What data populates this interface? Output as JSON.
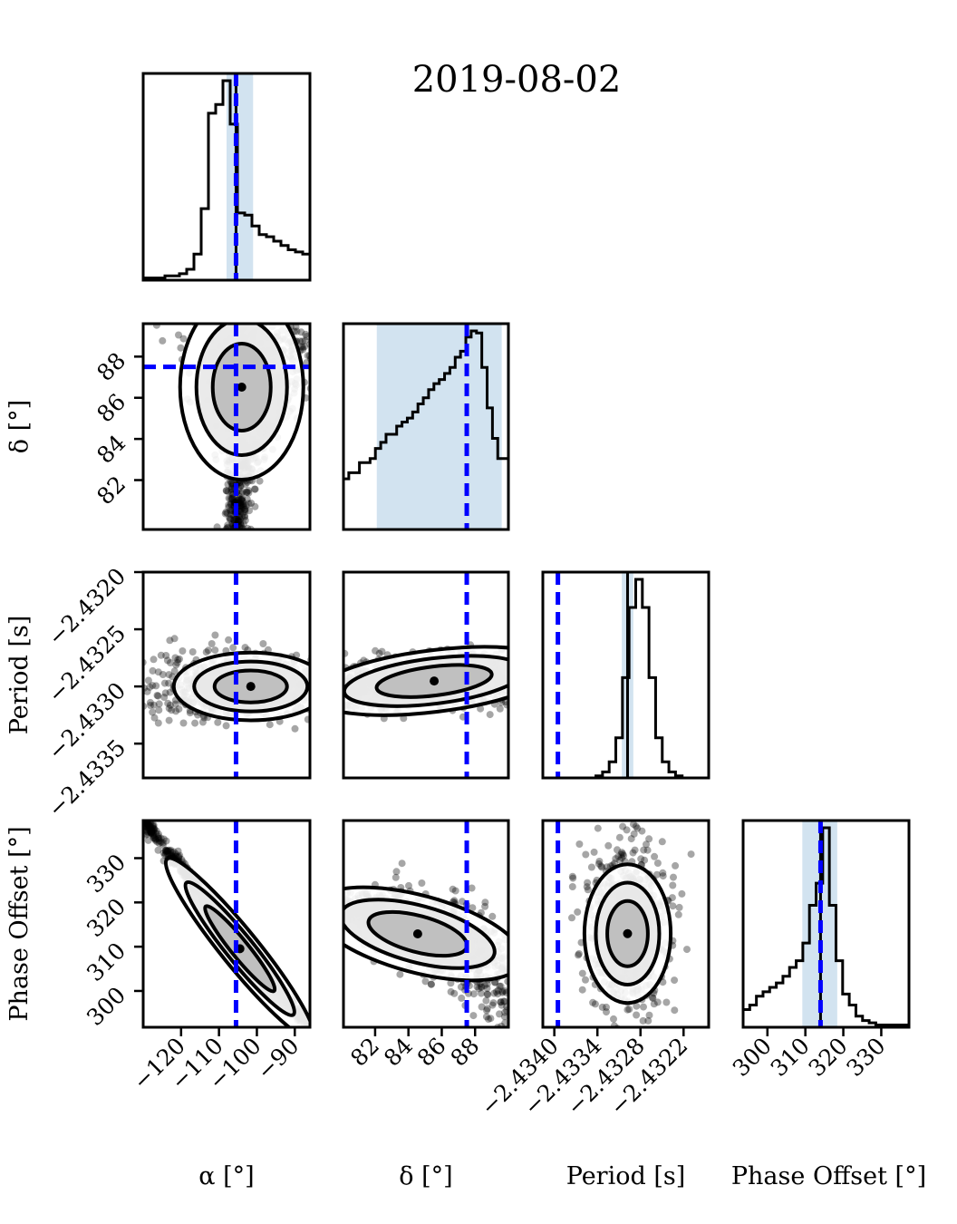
{
  "chart_data": {
    "type": "corner",
    "title": "2019-08-02",
    "parameters": [
      {
        "label": "α [°]",
        "range": [
          -130,
          -86
        ],
        "ticks": [
          -120,
          -110,
          -100,
          -90
        ],
        "tick_labels": [
          "−120",
          "−110",
          "−100",
          "−90"
        ],
        "truth": -105.5,
        "peak": -105.5,
        "ci": [
          -108.0,
          -101.0
        ]
      },
      {
        "label": "δ [°]",
        "range": [
          80.1,
          90.0
        ],
        "ticks": [
          82,
          84,
          86,
          88
        ],
        "tick_labels": [
          "82",
          "84",
          "86",
          "88"
        ],
        "truth": 87.5,
        "peak": 87.5,
        "ci": [
          82.1,
          89.6
        ]
      },
      {
        "label": "Period [s]",
        "range": [
          -2.43416,
          -2.43185
        ],
        "ticks": [
          -2.434,
          -2.4334,
          -2.4328,
          -2.4322
        ],
        "tick_labels": [
          "−2.4340",
          "−2.4334",
          "−2.4328",
          "−2.4322"
        ],
        "row_ticks": [
          -2.4335,
          -2.433,
          -2.4325,
          -2.432
        ],
        "row_tick_labels": [
          "−2.4335",
          "−2.4330",
          "−2.4325",
          "−2.4320"
        ],
        "truth": -2.43395,
        "peak": -2.43298,
        "ci": [
          -2.43306,
          -2.4329
        ],
        "row_range": [
          -2.4338,
          -2.432
        ]
      },
      {
        "label": "Phase Offset [°]",
        "range": [
          293.6,
          337.3
        ],
        "ticks": [
          300,
          310,
          320,
          330
        ],
        "tick_labels": [
          "300",
          "310",
          "320",
          "330"
        ],
        "truth": 314.0,
        "peak": 314.0,
        "ci": [
          309.2,
          318.4
        ]
      }
    ],
    "row_axis_ranges": {
      "delta": [
        79.6,
        89.6
      ],
      "phase": [
        291.8,
        338.5
      ]
    },
    "colors": {
      "histogram": "#000000",
      "truth_line": "#0000ff",
      "credible_band": "#d2e3f0",
      "contours": "#000000",
      "samples": "#000000"
    },
    "histograms": [
      {
        "param": "α [°]",
        "values": [
          1,
          1,
          1,
          2,
          2,
          3,
          5,
          12,
          33,
          77,
          81,
          92,
          72,
          31,
          30,
          25,
          21,
          20,
          18,
          16,
          14,
          13,
          12
        ]
      },
      {
        "param": "δ [°]",
        "values": [
          25,
          28,
          28,
          33,
          33,
          35,
          40,
          43,
          47,
          47,
          51,
          53,
          55,
          58,
          62,
          65,
          69,
          72,
          74,
          77,
          80,
          85,
          88,
          95,
          98,
          97,
          80,
          60,
          45,
          35,
          35
        ]
      },
      {
        "param": "Period [s]",
        "values": [
          0,
          0,
          0,
          0,
          0,
          0,
          0,
          0,
          1,
          3,
          8,
          20,
          50,
          85,
          99,
          85,
          50,
          20,
          8,
          3,
          1,
          0,
          0,
          0,
          0
        ]
      },
      {
        "param": "Phase Offset [°]",
        "values": [
          8,
          10,
          14,
          16,
          18,
          20,
          23,
          27,
          30,
          38,
          55,
          65,
          90,
          55,
          30,
          15,
          10,
          5,
          3,
          2,
          1,
          1,
          1,
          1,
          1
        ]
      }
    ]
  }
}
